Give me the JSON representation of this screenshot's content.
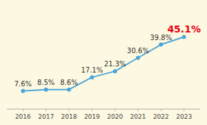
{
  "chart_data": {
    "type": "line",
    "x": [
      2016,
      2017,
      2018,
      2019,
      2020,
      2021,
      2022,
      2023
    ],
    "values": [
      7.6,
      8.5,
      8.6,
      17.1,
      21.3,
      30.6,
      39.8,
      45.1
    ],
    "value_labels": [
      "7.6%",
      "8.5%",
      "8.6%",
      "17.1%",
      "21.3%",
      "30.6%",
      "39.8%",
      "45.1%"
    ],
    "color": "#4da6d9",
    "marker": "circle",
    "xlim": [
      2015.3,
      2023.7
    ],
    "xticks": [
      2016,
      2017,
      2018,
      2019,
      2020,
      2021,
      2022,
      2023
    ],
    "ylim": [
      -5,
      65
    ],
    "data_labels": true,
    "tick_labels": "x",
    "grid": false
  }
}
